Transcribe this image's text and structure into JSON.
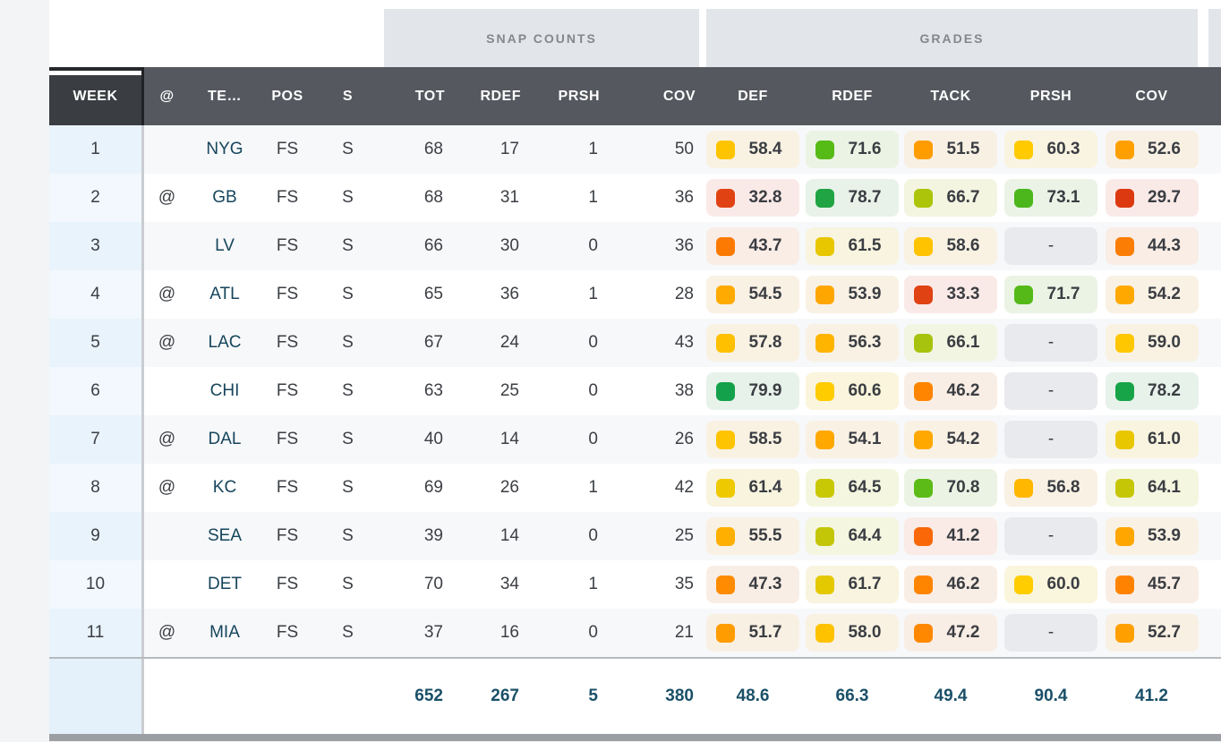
{
  "group_headers": {
    "snap_counts": "SNAP COUNTS",
    "grades": "GRADES"
  },
  "columns": {
    "week": "WEEK",
    "at": "@",
    "team": "TE…",
    "pos": "POS",
    "s": "S",
    "tot": "TOT",
    "rdef": "RDEF",
    "prsh": "PRSH",
    "cov": "COV",
    "gdef": "DEF",
    "grdef": "RDEF",
    "gtack": "TACK",
    "gprsh": "PRSH",
    "gcov": "COV"
  },
  "rows": [
    {
      "week": "1",
      "at": "",
      "team": "NYG",
      "pos": "FS",
      "s": "S",
      "tot": "68",
      "rdef": "17",
      "prsh": "1",
      "cov": "50",
      "grades": {
        "def": {
          "v": "58.4",
          "c": "#FFC400",
          "b": "#F9F2E3"
        },
        "rdef": {
          "v": "71.6",
          "c": "#56BA17",
          "b": "#EBF3E5"
        },
        "tack": {
          "v": "51.5",
          "c": "#FF9C00",
          "b": "#F9F0E4"
        },
        "prsh": {
          "v": "60.3",
          "c": "#FFCB00",
          "b": "#F9F3E1"
        },
        "cov": {
          "v": "52.6",
          "c": "#FFA000",
          "b": "#F9F0E4"
        }
      }
    },
    {
      "week": "2",
      "at": "@",
      "team": "GB",
      "pos": "FS",
      "s": "S",
      "tot": "68",
      "rdef": "31",
      "prsh": "1",
      "cov": "36",
      "grades": {
        "def": {
          "v": "32.8",
          "c": "#E04214",
          "b": "#FAEAE7"
        },
        "rdef": {
          "v": "78.7",
          "c": "#21A443",
          "b": "#E8F2E9"
        },
        "tack": {
          "v": "66.7",
          "c": "#ACC40A",
          "b": "#F3F5E1"
        },
        "prsh": {
          "v": "73.1",
          "c": "#4BB71D",
          "b": "#EAF3E6"
        },
        "cov": {
          "v": "29.7",
          "c": "#DC3911",
          "b": "#FAEAE7"
        }
      }
    },
    {
      "week": "3",
      "at": "",
      "team": "LV",
      "pos": "FS",
      "s": "S",
      "tot": "66",
      "rdef": "30",
      "prsh": "0",
      "cov": "36",
      "grades": {
        "def": {
          "v": "43.7",
          "c": "#FC7A02",
          "b": "#F9EDE6"
        },
        "rdef": {
          "v": "61.5",
          "c": "#E8C600",
          "b": "#F8F4DF"
        },
        "tack": {
          "v": "58.6",
          "c": "#FFC300",
          "b": "#F9F2E3"
        },
        "prsh": {
          "v": "-"
        },
        "cov": {
          "v": "44.3",
          "c": "#FB7D03",
          "b": "#F9EDE6"
        }
      }
    },
    {
      "week": "4",
      "at": "@",
      "team": "ATL",
      "pos": "FS",
      "s": "S",
      "tot": "65",
      "rdef": "36",
      "prsh": "1",
      "cov": "28",
      "grades": {
        "def": {
          "v": "54.5",
          "c": "#FFAA00",
          "b": "#F9F1E4"
        },
        "rdef": {
          "v": "53.9",
          "c": "#FFA600",
          "b": "#F9F1E4"
        },
        "tack": {
          "v": "33.3",
          "c": "#E04214",
          "b": "#FAEAE7"
        },
        "prsh": {
          "v": "71.7",
          "c": "#55BA18",
          "b": "#EBF3E5"
        },
        "cov": {
          "v": "54.2",
          "c": "#FFA900",
          "b": "#F9F1E4"
        }
      }
    },
    {
      "week": "5",
      "at": "@",
      "team": "LAC",
      "pos": "FS",
      "s": "S",
      "tot": "67",
      "rdef": "24",
      "prsh": "0",
      "cov": "43",
      "grades": {
        "def": {
          "v": "57.8",
          "c": "#FFC000",
          "b": "#F9F2E3"
        },
        "rdef": {
          "v": "56.3",
          "c": "#FFB500",
          "b": "#F9F1E4"
        },
        "tack": {
          "v": "66.1",
          "c": "#A7C30D",
          "b": "#F2F5E2"
        },
        "prsh": {
          "v": "-"
        },
        "cov": {
          "v": "59.0",
          "c": "#FFC700",
          "b": "#F9F2E3"
        }
      }
    },
    {
      "week": "6",
      "at": "",
      "team": "CHI",
      "pos": "FS",
      "s": "S",
      "tot": "63",
      "rdef": "25",
      "prsh": "0",
      "cov": "38",
      "grades": {
        "def": {
          "v": "79.9",
          "c": "#14A14B",
          "b": "#E7F2EA"
        },
        "rdef": {
          "v": "60.6",
          "c": "#FFCC00",
          "b": "#FAF5DC"
        },
        "tack": {
          "v": "46.2",
          "c": "#FF8500",
          "b": "#F9EEE5"
        },
        "prsh": {
          "v": "-"
        },
        "cov": {
          "v": "78.2",
          "c": "#17A348",
          "b": "#E7F2EA"
        }
      }
    },
    {
      "week": "7",
      "at": "@",
      "team": "DAL",
      "pos": "FS",
      "s": "S",
      "tot": "40",
      "rdef": "14",
      "prsh": "0",
      "cov": "26",
      "grades": {
        "def": {
          "v": "58.5",
          "c": "#FFC400",
          "b": "#F9F2E3"
        },
        "rdef": {
          "v": "54.1",
          "c": "#FFA800",
          "b": "#F9F1E4"
        },
        "tack": {
          "v": "54.2",
          "c": "#FFA900",
          "b": "#F9F1E4"
        },
        "prsh": {
          "v": "-"
        },
        "cov": {
          "v": "61.0",
          "c": "#E9C700",
          "b": "#F8F4DF"
        }
      }
    },
    {
      "week": "8",
      "at": "@",
      "team": "KC",
      "pos": "FS",
      "s": "S",
      "tot": "69",
      "rdef": "26",
      "prsh": "1",
      "cov": "42",
      "grades": {
        "def": {
          "v": "61.4",
          "c": "#EFC900",
          "b": "#F8F4DE"
        },
        "rdef": {
          "v": "64.5",
          "c": "#C9C805",
          "b": "#F5F6E0"
        },
        "tack": {
          "v": "70.8",
          "c": "#5CBB16",
          "b": "#EBF4E4"
        },
        "prsh": {
          "v": "56.8",
          "c": "#FFB700",
          "b": "#F9F1E4"
        },
        "cov": {
          "v": "64.1",
          "c": "#C5C706",
          "b": "#F5F6E0"
        }
      }
    },
    {
      "week": "9",
      "at": "",
      "team": "SEA",
      "pos": "FS",
      "s": "S",
      "tot": "39",
      "rdef": "14",
      "prsh": "0",
      "cov": "25",
      "grades": {
        "def": {
          "v": "55.5",
          "c": "#FFAF00",
          "b": "#F9F1E4"
        },
        "rdef": {
          "v": "64.4",
          "c": "#C2C607",
          "b": "#F5F6E0"
        },
        "tack": {
          "v": "41.2",
          "c": "#F96707",
          "b": "#FAEBE6"
        },
        "prsh": {
          "v": "-"
        },
        "cov": {
          "v": "53.9",
          "c": "#FFA600",
          "b": "#F9F1E4"
        }
      }
    },
    {
      "week": "10",
      "at": "",
      "team": "DET",
      "pos": "FS",
      "s": "S",
      "tot": "70",
      "rdef": "34",
      "prsh": "1",
      "cov": "35",
      "grades": {
        "def": {
          "v": "47.3",
          "c": "#FF8B00",
          "b": "#F9EEE5"
        },
        "rdef": {
          "v": "61.7",
          "c": "#E4C900",
          "b": "#F8F4DF"
        },
        "tack": {
          "v": "46.2",
          "c": "#FF8500",
          "b": "#F9EEE5"
        },
        "prsh": {
          "v": "60.0",
          "c": "#FFCD00",
          "b": "#FAF5DD"
        },
        "cov": {
          "v": "45.7",
          "c": "#FF8300",
          "b": "#F9EEE5"
        }
      }
    },
    {
      "week": "11",
      "at": "@",
      "team": "MIA",
      "pos": "FS",
      "s": "S",
      "tot": "37",
      "rdef": "16",
      "prsh": "0",
      "cov": "21",
      "grades": {
        "def": {
          "v": "51.7",
          "c": "#FF9C00",
          "b": "#F9F0E4"
        },
        "rdef": {
          "v": "58.0",
          "c": "#FFC200",
          "b": "#F9F2E3"
        },
        "tack": {
          "v": "47.2",
          "c": "#FF8800",
          "b": "#F9EEE5"
        },
        "prsh": {
          "v": "-"
        },
        "cov": {
          "v": "52.7",
          "c": "#FFA000",
          "b": "#F9F0E4"
        }
      }
    }
  ],
  "totals": {
    "tot": "652",
    "rdef": "267",
    "prsh": "5",
    "cov": "380",
    "gdef": "48.6",
    "grdef": "66.3",
    "gtack": "49.4",
    "gprsh": "90.4",
    "gcov": "41.2"
  },
  "na_placeholder": "-",
  "colors": {
    "header_bg": "#55585F",
    "week_header_bg": "#3A3D42",
    "group_header_bg": "#E2E5E9",
    "group_header_text": "#84878C",
    "team_link": "#16455C",
    "totals_text": "#1A5068",
    "row_stripe": "#F7F8FA",
    "week_col_bg": "#E9F3FB",
    "na_badge_bg": "#E9EAEE",
    "scrollbar": "#9B9EA2"
  }
}
